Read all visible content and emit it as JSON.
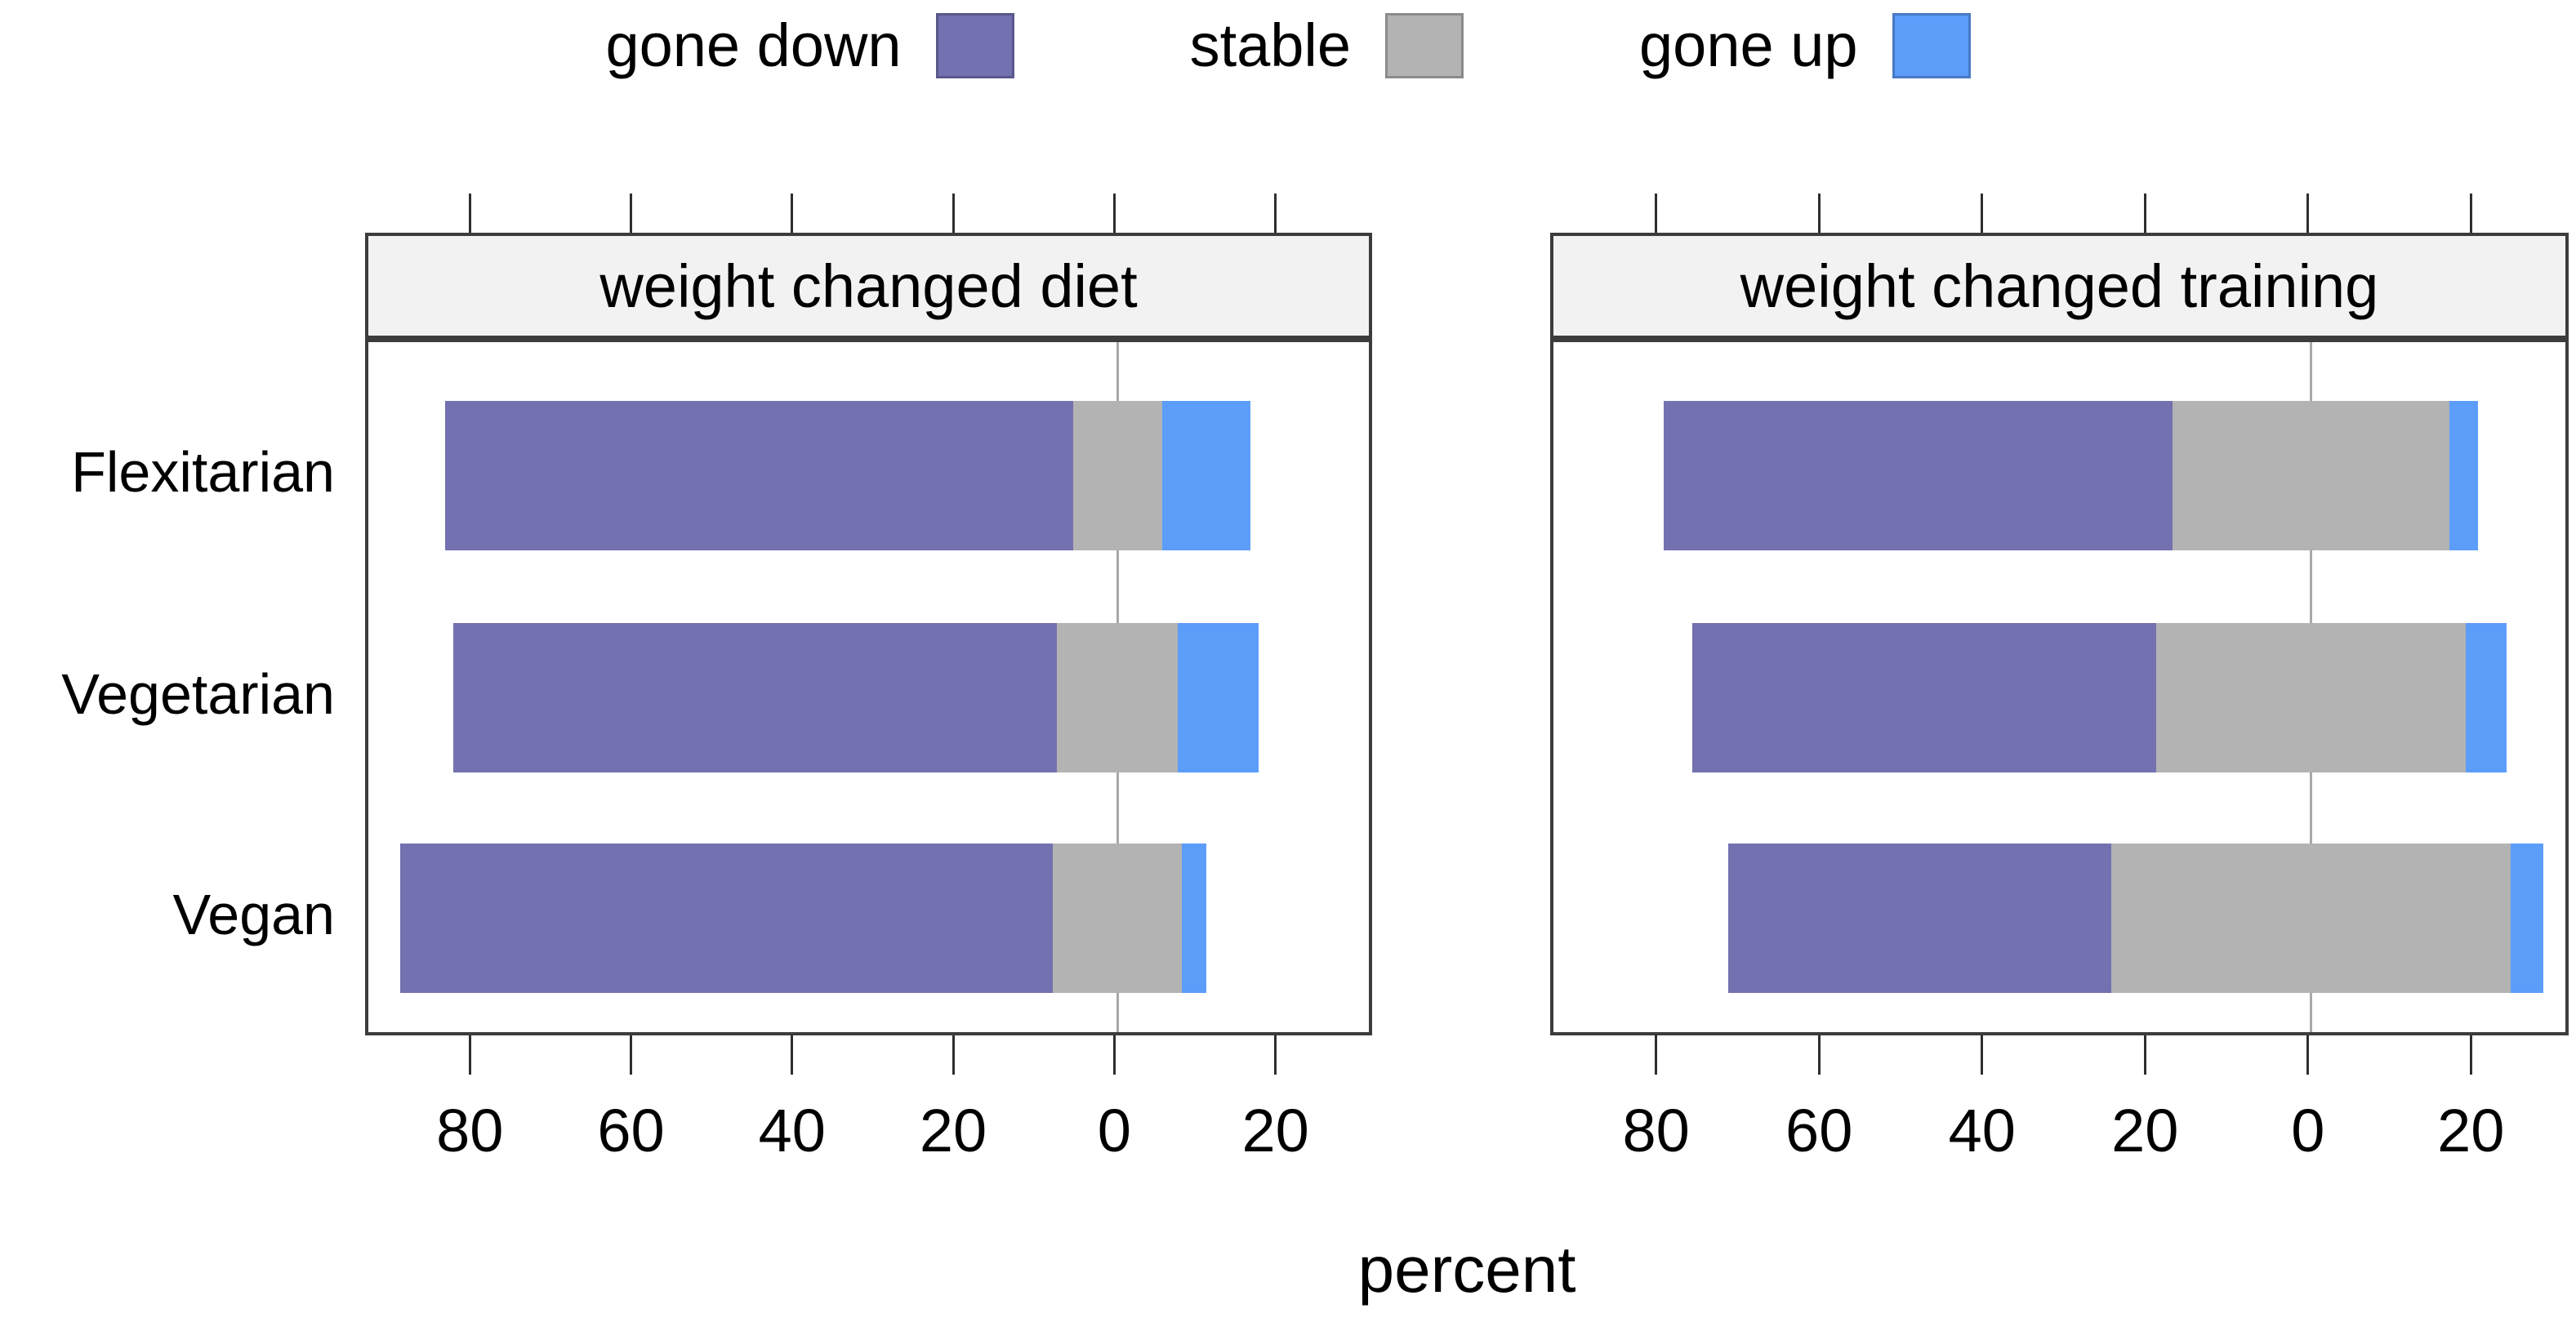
{
  "legend": {
    "items": [
      {
        "label": "gone down",
        "color": "#7371B0"
      },
      {
        "label": "stable",
        "color": "#B3B3B3"
      },
      {
        "label": "gone up",
        "color": "#5C9DFA"
      }
    ]
  },
  "chart_data": {
    "type": "bar",
    "variant": "diverging-stacked-likert",
    "orientation": "horizontal",
    "values_unit": "percent",
    "categories": [
      "Flexitarian",
      "Vegetarian",
      "Vegan"
    ],
    "panels": [
      {
        "title": "weight changed diet",
        "series": [
          {
            "name": "gone down",
            "color": "#7371B0",
            "values": [
              78,
              75,
              81
            ]
          },
          {
            "name": "stable",
            "color": "#B3B3B3",
            "values": [
              11,
              15,
              16
            ]
          },
          {
            "name": "gone up",
            "color": "#5C9DFA",
            "values": [
              11,
              10,
              3
            ]
          }
        ]
      },
      {
        "title": "weight changed training",
        "series": [
          {
            "name": "gone down",
            "color": "#7371B0",
            "values": [
              62.5,
              57,
              47
            ]
          },
          {
            "name": "stable",
            "color": "#B3B3B3",
            "values": [
              34,
              38,
              49
            ]
          },
          {
            "name": "gone up",
            "color": "#5C9DFA",
            "values": [
              3.5,
              5,
              4
            ]
          }
        ]
      }
    ],
    "xlabel": "percent",
    "axis": {
      "xmin": -93,
      "xmax": 32,
      "tick_values": [
        -80,
        -60,
        -40,
        -20,
        0,
        20
      ],
      "tick_labels": [
        "80",
        "60",
        "40",
        "20",
        "0",
        "20"
      ],
      "zero_reference_line": 0,
      "neutral_category_centered_on_zero": true,
      "grid": "zero-line-only",
      "legend_position": "top"
    }
  }
}
